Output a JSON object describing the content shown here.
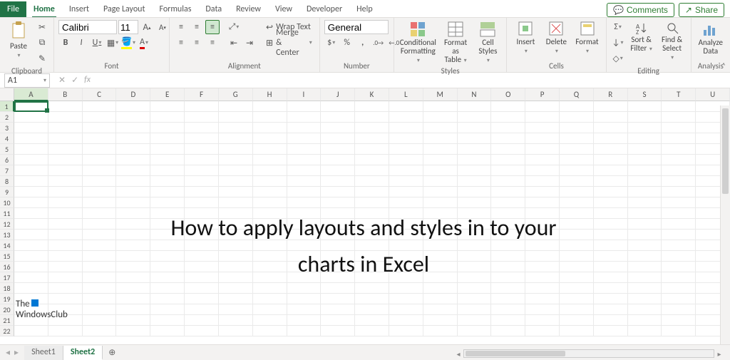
{
  "top_actions": {
    "comments": "Comments",
    "share": "Share"
  },
  "tabs": [
    "File",
    "Home",
    "Insert",
    "Page Layout",
    "Formulas",
    "Data",
    "Review",
    "View",
    "Developer",
    "Help"
  ],
  "active_tab": "Home",
  "ribbon": {
    "clipboard": {
      "label": "Clipboard",
      "paste": "Paste"
    },
    "font": {
      "label": "Font",
      "name": "Calibri",
      "size": "11",
      "inc": "A",
      "dec": "A"
    },
    "alignment": {
      "label": "Alignment",
      "wrap": "Wrap Text",
      "merge": "Merge & Center"
    },
    "number": {
      "label": "Number",
      "format": "General"
    },
    "styles": {
      "label": "Styles",
      "cond": "Conditional Formatting",
      "cond2": "",
      "table": "Format as Table",
      "cell": "Cell Styles"
    },
    "cells": {
      "label": "Cells",
      "insert": "Insert",
      "delete": "Delete",
      "format": "Format"
    },
    "editing": {
      "label": "Editing",
      "sort": "Sort & Filter",
      "find": "Find & Select"
    },
    "analysis": {
      "label": "Analysis",
      "analyze": "Analyze Data"
    }
  },
  "formula_bar": {
    "cell_ref": "A1",
    "formula": ""
  },
  "grid": {
    "columns": [
      "A",
      "B",
      "C",
      "D",
      "E",
      "F",
      "G",
      "H",
      "I",
      "J",
      "K",
      "L",
      "M",
      "N",
      "O",
      "P",
      "Q",
      "R",
      "S",
      "T",
      "U"
    ],
    "row_count": 22,
    "selected_col": "A",
    "selected_row": 1
  },
  "overlay": "How to apply layouts and styles in to your charts in Excel",
  "watermark": {
    "line1": "The",
    "line2": "WindowsClub"
  },
  "sheets": {
    "tabs": [
      "Sheet1",
      "Sheet2"
    ],
    "active": "Sheet2"
  }
}
